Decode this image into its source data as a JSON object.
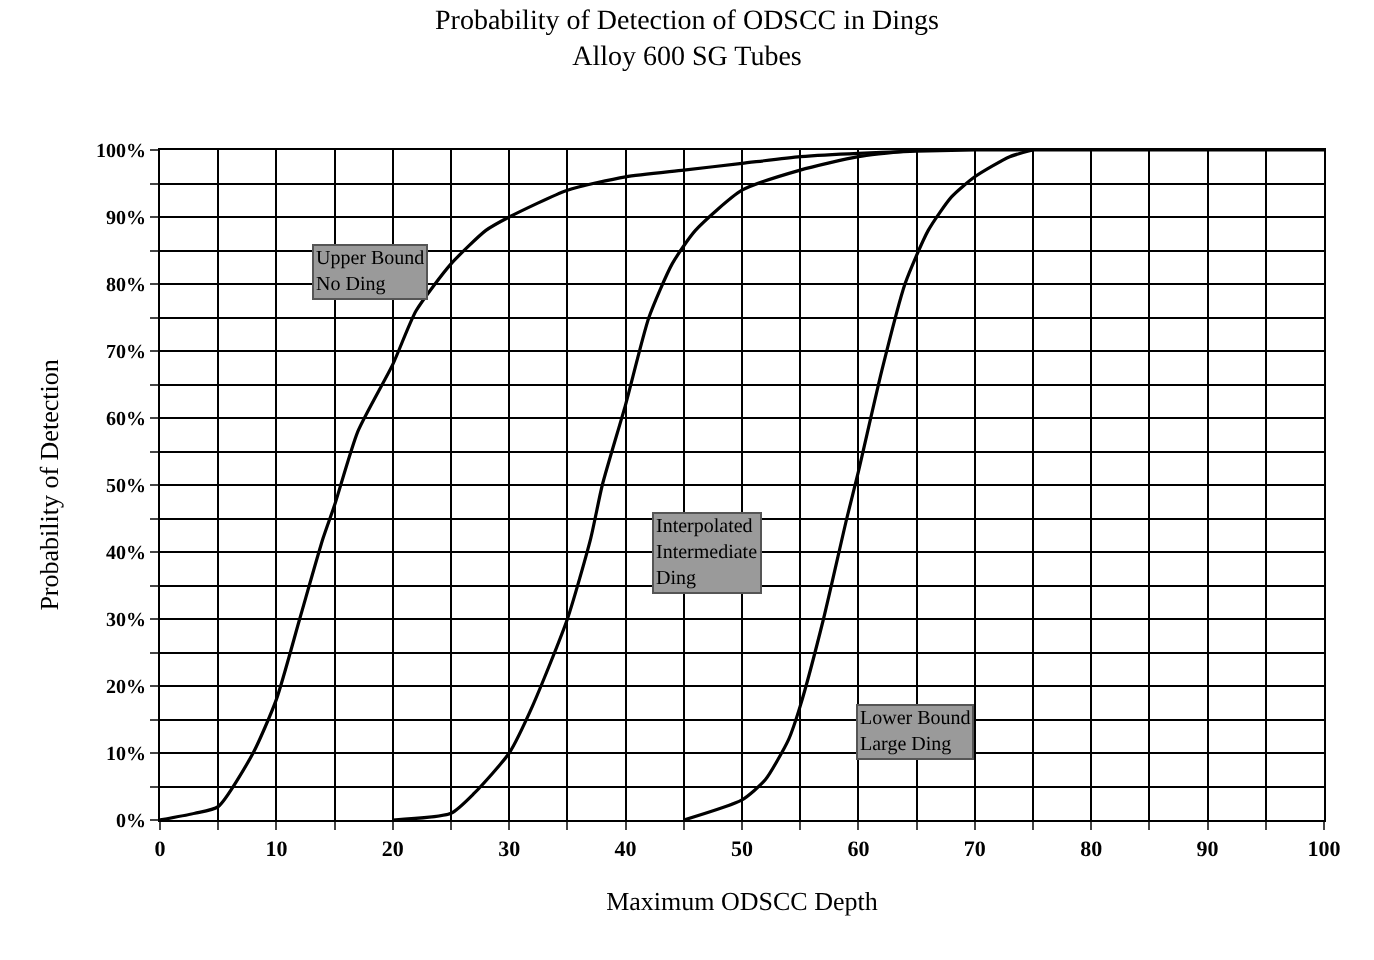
{
  "chart_data": {
    "type": "line",
    "title": "Probability of Detection of ODSCC in Dings",
    "subtitle": "Alloy 600 SG Tubes",
    "xlabel": "Maximum ODSCC Depth",
    "ylabel": "Probability of Detection",
    "series": [
      {
        "color": "#000000",
        "x": [
          0,
          3,
          5,
          8,
          10,
          12,
          14,
          15,
          17,
          20,
          22,
          25,
          28,
          30,
          35,
          40,
          45,
          50,
          55,
          60,
          70,
          100
        ],
        "values": [
          0,
          1,
          2,
          10,
          18,
          30,
          42,
          47,
          58,
          68,
          76,
          83,
          88,
          90,
          94,
          96,
          97,
          98,
          99,
          99.5,
          100,
          100
        ]
      },
      {
        "color": "#000000",
        "x": [
          20,
          25,
          27,
          30,
          32,
          35,
          37,
          38,
          40,
          42,
          44,
          46,
          50,
          55,
          60,
          65
        ],
        "values": [
          0,
          1,
          4,
          10,
          17,
          30,
          42,
          50,
          62,
          75,
          83,
          88,
          94,
          97,
          99,
          100
        ]
      },
      {
        "color": "#000000",
        "x": [
          45,
          50,
          52,
          54,
          55,
          57,
          59,
          60,
          62,
          64,
          66,
          68,
          70,
          73,
          75
        ],
        "values": [
          0,
          3,
          6,
          12,
          17,
          30,
          45,
          52,
          67,
          80,
          88,
          93,
          96,
          99,
          100
        ]
      }
    ],
    "annotations": [
      "Upper Bound\nNo Ding",
      "Interpolated\nIntermediate\nDing",
      "Lower Bound\nLarge Ding"
    ],
    "xlim": [
      0,
      100
    ],
    "xticks": [
      0,
      {
        "value": 5,
        "label": null
      },
      10,
      {
        "value": 15,
        "label": null
      },
      20,
      {
        "value": 25,
        "label": null
      },
      30,
      {
        "value": 35,
        "label": null
      },
      40,
      {
        "value": 45,
        "label": null
      },
      50,
      {
        "value": 55,
        "label": null
      },
      60,
      {
        "value": 65,
        "label": null
      },
      70,
      {
        "value": 75,
        "label": null
      },
      80,
      {
        "value": 85,
        "label": null
      },
      90,
      {
        "value": 95,
        "label": null
      },
      100
    ],
    "ylim": [
      0,
      100
    ],
    "yticks": [
      {
        "value": 0,
        "label": "0%"
      },
      {
        "value": 5,
        "label": null
      },
      {
        "value": 10,
        "label": "10%"
      },
      {
        "value": 15,
        "label": null
      },
      {
        "value": 20,
        "label": "20%"
      },
      {
        "value": 25,
        "label": null
      },
      {
        "value": 30,
        "label": "30%"
      },
      {
        "value": 35,
        "label": null
      },
      {
        "value": 40,
        "label": "40%"
      },
      {
        "value": 45,
        "label": null
      },
      {
        "value": 50,
        "label": "50%"
      },
      {
        "value": 55,
        "label": null
      },
      {
        "value": 60,
        "label": "60%"
      },
      {
        "value": 65,
        "label": null
      },
      {
        "value": 70,
        "label": "70%"
      },
      {
        "value": 75,
        "label": null
      },
      {
        "value": 80,
        "label": "80%"
      },
      {
        "value": 85,
        "label": null
      },
      {
        "value": 90,
        "label": "90%"
      },
      {
        "value": 95,
        "label": null
      },
      {
        "value": 100,
        "label": "100%"
      }
    ],
    "grid": true,
    "marker": "none",
    "line_style": "solid"
  }
}
